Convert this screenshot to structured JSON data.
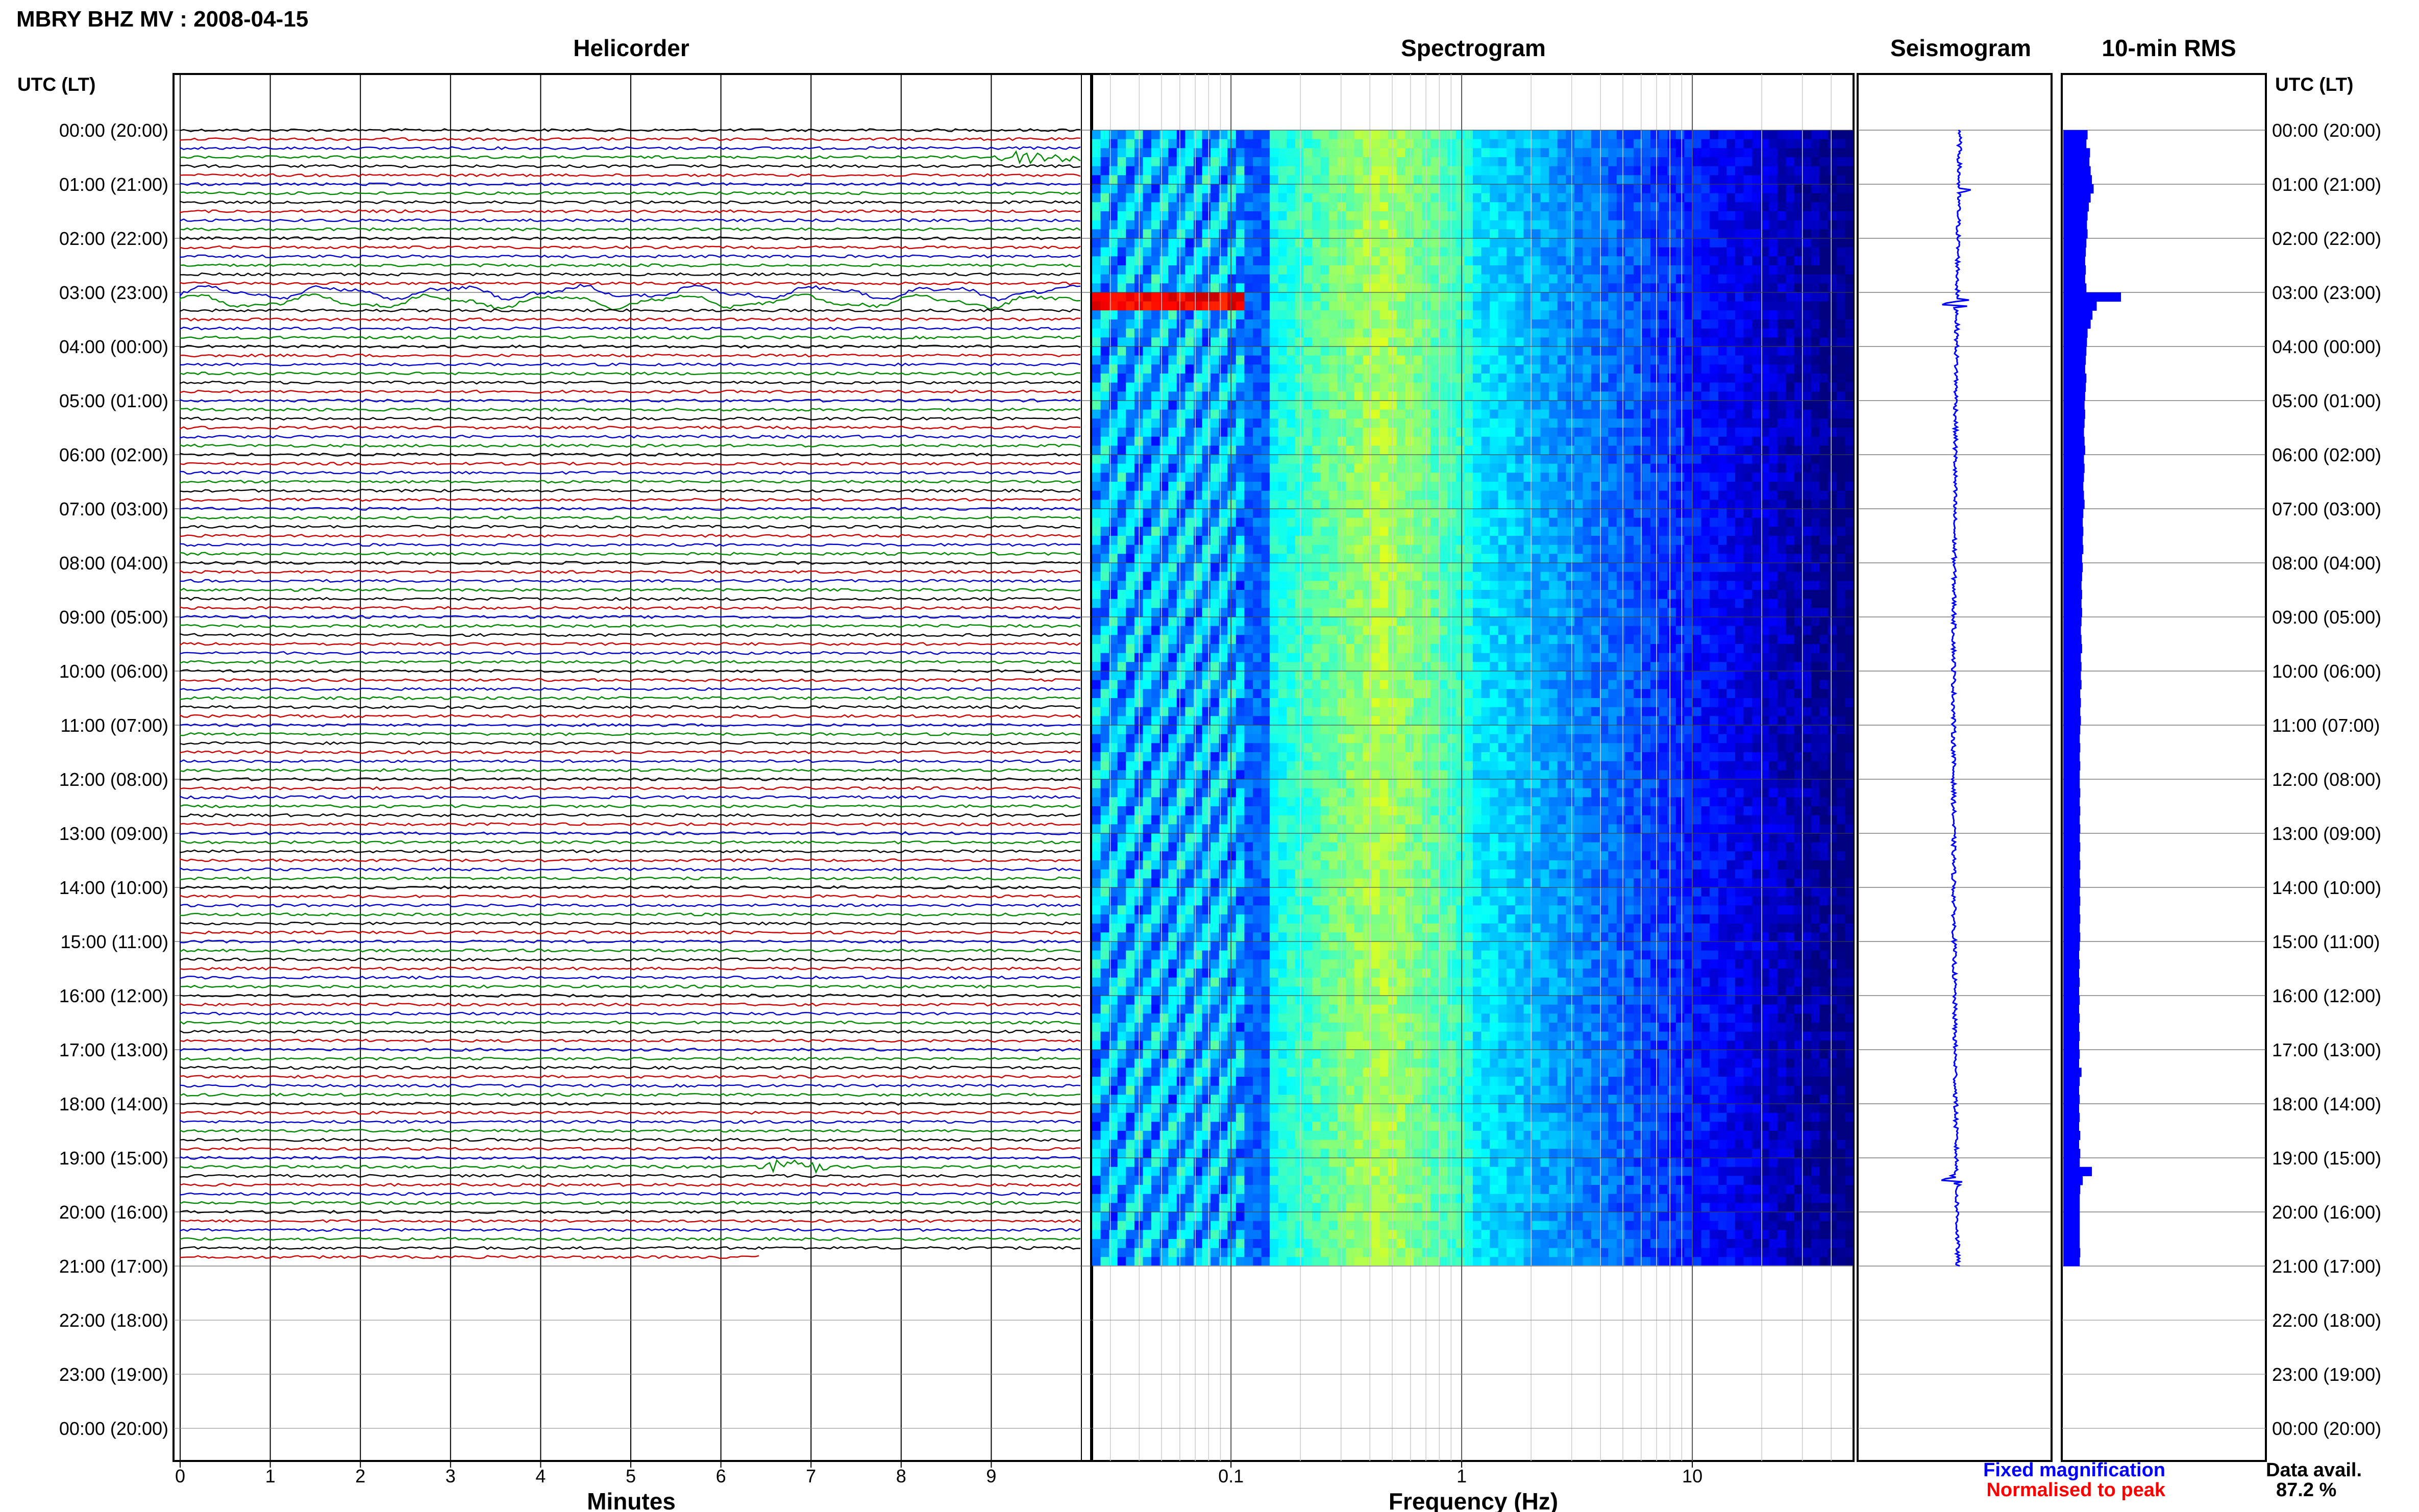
{
  "header": {
    "title": "MBRY BHZ MV : 2008-04-15"
  },
  "panels": {
    "helicorder": "Helicorder",
    "spectrogram": "Spectrogram",
    "seismogram": "Seismogram",
    "rms": "10-min RMS"
  },
  "axis": {
    "time_header_left": "UTC (LT)",
    "time_header_right": "UTC (LT)",
    "helicorder_xlabel": "Minutes",
    "spectrogram_xlabel": "Frequency (Hz)"
  },
  "legend": {
    "fixed": "Fixed magnification",
    "normalised": "Normalised to peak",
    "fixed_color": "#0000ff",
    "normalised_color": "#ff0000"
  },
  "data_availability": {
    "label": "Data avail.",
    "value": "87.2 %"
  },
  "chart_data": {
    "type": "helicorder-spectrogram",
    "time_labels": [
      "00:00 (20:00)",
      "01:00 (21:00)",
      "02:00 (22:00)",
      "03:00 (23:00)",
      "04:00 (00:00)",
      "05:00 (01:00)",
      "06:00 (02:00)",
      "07:00 (03:00)",
      "08:00 (04:00)",
      "09:00 (05:00)",
      "10:00 (06:00)",
      "11:00 (07:00)",
      "12:00 (08:00)",
      "13:00 (09:00)",
      "14:00 (10:00)",
      "15:00 (11:00)",
      "16:00 (12:00)",
      "17:00 (13:00)",
      "18:00 (14:00)",
      "19:00 (15:00)",
      "20:00 (16:00)",
      "21:00 (17:00)",
      "22:00 (18:00)",
      "23:00 (19:00)",
      "00:00 (20:00)"
    ],
    "minute_ticks": [
      "0",
      "1",
      "2",
      "3",
      "4",
      "5",
      "6",
      "7",
      "8",
      "9"
    ],
    "freq_ticks": [
      {
        "value": 0.1,
        "label": "0.1"
      },
      {
        "value": 1,
        "label": "1"
      },
      {
        "value": 10,
        "label": "10"
      }
    ],
    "freq_range_hz": [
      0.025,
      50
    ],
    "minutes_per_line": 10,
    "data_end_utc_hours": 21,
    "trace_colors": [
      "#000000",
      "#cc0000",
      "#0000cc",
      "#008800"
    ],
    "events": [
      {
        "utc": "03:10",
        "note": "long-period swell, strong low-frequency energy"
      },
      {
        "utc": "19:20",
        "note": "local event near minute 7"
      }
    ],
    "rms_10min": [
      0.4,
      0.38,
      0.44,
      0.43,
      0.45,
      0.47,
      0.5,
      0.45,
      0.42,
      0.4,
      0.39,
      0.4,
      0.38,
      0.37,
      0.36,
      0.37,
      0.36,
      0.38,
      0.95,
      0.55,
      0.48,
      0.45,
      0.4,
      0.39,
      0.38,
      0.37,
      0.36,
      0.38,
      0.37,
      0.36,
      0.35,
      0.36,
      0.35,
      0.34,
      0.35,
      0.36,
      0.34,
      0.35,
      0.34,
      0.33,
      0.34,
      0.35,
      0.33,
      0.32,
      0.33,
      0.32,
      0.33,
      0.31,
      0.32,
      0.31,
      0.3,
      0.31,
      0.3,
      0.31,
      0.3,
      0.29,
      0.3,
      0.31,
      0.29,
      0.3,
      0.29,
      0.3,
      0.28,
      0.29,
      0.28,
      0.29,
      0.28,
      0.27,
      0.28,
      0.27,
      0.28,
      0.27,
      0.27,
      0.28,
      0.27,
      0.28,
      0.27,
      0.28,
      0.27,
      0.28,
      0.27,
      0.28,
      0.27,
      0.28,
      0.27,
      0.28,
      0.27,
      0.28,
      0.27,
      0.28,
      0.27,
      0.26,
      0.27,
      0.26,
      0.27,
      0.26,
      0.27,
      0.26,
      0.27,
      0.26,
      0.27,
      0.26,
      0.27,
      0.26,
      0.3,
      0.27,
      0.26,
      0.27,
      0.26,
      0.27,
      0.26,
      0.28,
      0.26,
      0.28,
      0.27,
      0.47,
      0.32,
      0.28,
      0.27,
      0.27,
      0.27,
      0.27,
      0.27,
      0.27,
      0.28,
      0.27
    ],
    "rms_xlim": [
      0,
      1.0
    ]
  }
}
